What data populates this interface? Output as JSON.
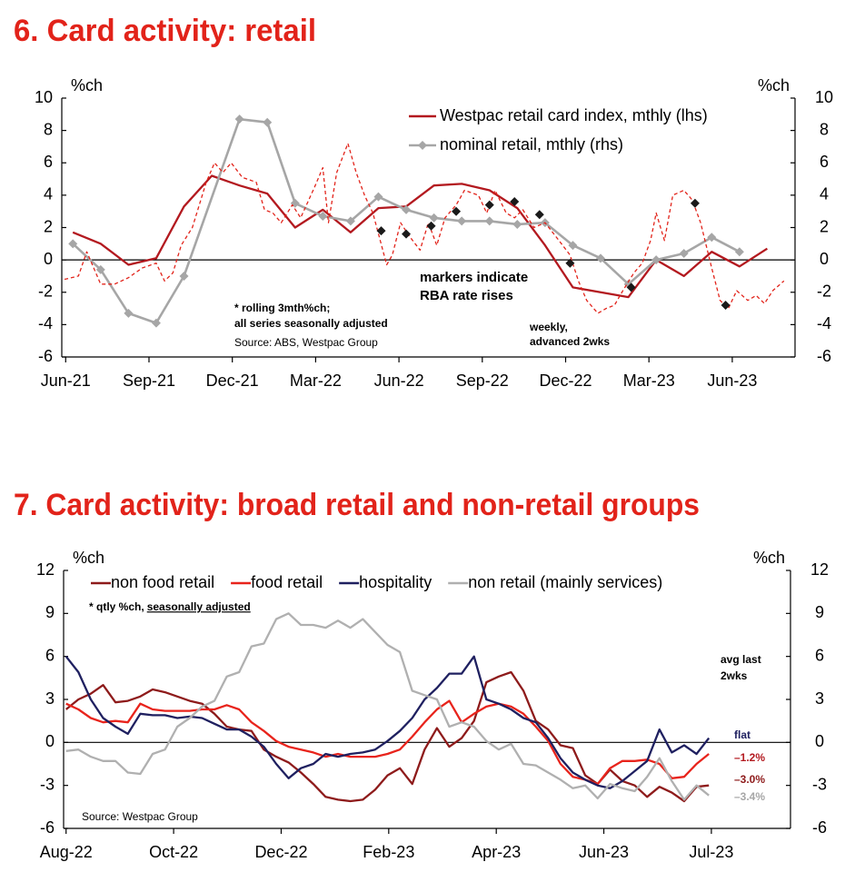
{
  "chart_data": [
    {
      "type": "line",
      "title": "6. Card activity: retail",
      "y_label": "%ch",
      "y2_label": "%ch",
      "xlim": [
        -0.4,
        26.0
      ],
      "xticks": [
        {
          "value": -0.26,
          "label": "Jun-21"
        },
        {
          "value": 2.74,
          "label": "Sep-21"
        },
        {
          "value": 5.74,
          "label": "Dec-21"
        },
        {
          "value": 8.74,
          "label": "Mar-22"
        },
        {
          "value": 11.74,
          "label": "Jun-22"
        },
        {
          "value": 14.74,
          "label": "Sep-22"
        },
        {
          "value": 17.74,
          "label": "Dec-22"
        },
        {
          "value": 20.74,
          "label": "Mar-23"
        },
        {
          "value": 23.74,
          "label": "Jun-23"
        }
      ],
      "ylim": [
        -6,
        10
      ],
      "yticks": [
        -6,
        -4,
        -2,
        0,
        2,
        4,
        6,
        8,
        10
      ],
      "y2lim": [
        -6,
        10
      ],
      "y2ticks": [
        -6,
        -4,
        -2,
        0,
        2,
        4,
        6,
        8,
        10
      ],
      "grid": false,
      "legend": "upper center",
      "series": [
        {
          "name": "Westpac retail card index, mthly (lhs)",
          "color": "#b3191f",
          "x": [
            0,
            1,
            2,
            3,
            4,
            5,
            6,
            7,
            8,
            9,
            10,
            11,
            12,
            13,
            14,
            15,
            16,
            17,
            18,
            19,
            20,
            21,
            22,
            23,
            24,
            25
          ],
          "values": [
            1.7,
            1.0,
            -0.3,
            0.1,
            3.3,
            5.2,
            4.6,
            4.1,
            2.0,
            3.1,
            1.7,
            3.2,
            3.3,
            4.6,
            4.7,
            4.3,
            3.2,
            0.9,
            -1.7,
            -2.0,
            -2.3,
            0,
            -1.0,
            0.5,
            -0.4,
            0.7
          ]
        },
        {
          "name": "nominal retail, mthly (rhs)",
          "color": "#a6a6a6",
          "axis": "y2",
          "marker": "diamond",
          "x": [
            0,
            1,
            2,
            3,
            4,
            6,
            7,
            8,
            9,
            10,
            11,
            12,
            13,
            14,
            15,
            16,
            17,
            18,
            19,
            20,
            21,
            22,
            23,
            24
          ],
          "values": [
            1.0,
            -0.6,
            -3.3,
            -3.9,
            -1.0,
            8.7,
            8.5,
            3.5,
            2.7,
            2.4,
            3.9,
            3.1,
            2.6,
            2.4,
            2.4,
            2.2,
            2.3,
            0.9,
            0.1,
            -1.5,
            0,
            0.4,
            1.4,
            0.5
          ]
        },
        {
          "color": "#e2231a",
          "dash": true,
          "x": [
            -0.3,
            0.2,
            0.5,
            1.0,
            1.5,
            2.0,
            2.5,
            3.0,
            3.3,
            3.6,
            3.9,
            4.3,
            4.8,
            5.1,
            5.4,
            5.7,
            6.1,
            6.6,
            6.9,
            7.2,
            7.5,
            7.9,
            8.2,
            8.7,
            9.0,
            9.2,
            9.5,
            9.9,
            10.2,
            10.5,
            10.8,
            11.3,
            11.5,
            11.8,
            12.1,
            12.5,
            12.8,
            13.1,
            13.4,
            13.8,
            14.1,
            14.6,
            14.9,
            15.2,
            15.6,
            15.9,
            16.2,
            16.6,
            17.0,
            17.5,
            17.9,
            18.2,
            18.5,
            18.9,
            19.2,
            19.5,
            19.8,
            20.2,
            20.5,
            20.8,
            21.0,
            21.3,
            21.6,
            22.0,
            22.3,
            22.6,
            23.0,
            23.3,
            23.6,
            23.9,
            24.3,
            24.6,
            24.9,
            25.2,
            25.6
          ],
          "values": [
            -1.2,
            -1.0,
            0.5,
            -1.5,
            -1.5,
            -1.1,
            -0.5,
            -0.2,
            -1.3,
            -0.8,
            0.9,
            2.0,
            4.8,
            6.0,
            5.4,
            6.0,
            5.1,
            4.8,
            3.1,
            2.9,
            2.3,
            3.4,
            2.6,
            4.5,
            5.7,
            2.3,
            5.4,
            7.2,
            5.4,
            4.0,
            2.9,
            -0.3,
            0.3,
            2.3,
            1.5,
            0.6,
            2.3,
            0.9,
            2.6,
            3.4,
            4.3,
            4.0,
            2.9,
            4.3,
            2.9,
            2.6,
            3.1,
            2.0,
            2.3,
            1.2,
            0.3,
            -1.3,
            -2.5,
            -3.3,
            -3.0,
            -2.8,
            -1.9,
            -0.8,
            -0.2,
            1.2,
            2.9,
            1.2,
            4.0,
            4.3,
            3.7,
            2.3,
            -0.5,
            -2.5,
            -3.0,
            -1.9,
            -2.5,
            -2.2,
            -2.7,
            -1.9,
            -1.3
          ]
        },
        {
          "color": "#1a1a1a",
          "marker": "diamond",
          "line": false,
          "x": [
            11.1,
            12.0,
            12.9,
            13.8,
            15.0,
            15.9,
            16.8,
            17.9,
            20.1,
            22.4,
            23.5
          ],
          "values": [
            1.8,
            1.6,
            2.1,
            3.0,
            3.4,
            3.6,
            2.8,
            -0.2,
            -1.7,
            3.5,
            -2.8
          ]
        }
      ],
      "annotations": [
        "* rolling 3mth%ch;",
        "all series seasonally adjusted",
        "Source: ABS, Westpac Group",
        "markers indicate",
        "RBA rate rises",
        "weekly,",
        "advanced 2wks"
      ]
    },
    {
      "type": "line",
      "title": "7. Card activity: broad retail and non-retail groups",
      "y_label": "%ch",
      "y2_label": "%ch",
      "xlim": [
        -0.2,
        58.6
      ],
      "xticks": [
        {
          "value": 0,
          "label": "Aug-22"
        },
        {
          "value": 8.7,
          "label": "Oct-22"
        },
        {
          "value": 17.4,
          "label": "Dec-22"
        },
        {
          "value": 26.1,
          "label": "Feb-23"
        },
        {
          "value": 34.8,
          "label": "Apr-23"
        },
        {
          "value": 43.5,
          "label": "Jun-23"
        },
        {
          "value": 52.2,
          "label": "Jul-23"
        }
      ],
      "ylim": [
        -6,
        12
      ],
      "yticks": [
        -6,
        -3,
        0,
        3,
        6,
        9,
        12
      ],
      "y2lim": [
        -6,
        12
      ],
      "y2ticks": [
        -6,
        -3,
        0,
        3,
        6,
        9,
        12
      ],
      "grid": false,
      "legend": "top",
      "x": [
        0,
        1,
        2,
        3,
        4,
        5,
        6,
        7,
        8,
        9,
        10,
        11,
        12,
        13,
        14,
        15,
        16,
        17,
        18,
        19,
        20,
        21,
        22,
        23,
        24,
        25,
        26,
        27,
        28,
        29,
        30,
        31,
        32,
        33,
        34,
        35,
        36,
        37,
        38,
        39,
        40,
        41,
        42,
        43,
        44,
        45,
        46,
        47,
        48,
        49,
        50,
        51,
        52
      ],
      "series": [
        {
          "name": "non food retail",
          "color": "#8e1b1b",
          "values": [
            2.3,
            3.0,
            3.4,
            4.0,
            2.8,
            2.9,
            3.2,
            3.7,
            3.5,
            3.2,
            2.9,
            2.7,
            2.0,
            1.1,
            0.9,
            0.8,
            -0.5,
            -1.0,
            -1.4,
            -2.1,
            -2.9,
            -3.8,
            -4.0,
            -4.1,
            -4.0,
            -3.3,
            -2.3,
            -1.8,
            -2.9,
            -0.5,
            1.0,
            -0.3,
            0.3,
            1.5,
            4.2,
            4.6,
            4.9,
            3.6,
            1.5,
            0.9,
            -0.2,
            -0.4,
            -2.3,
            -2.9,
            -1.9,
            -2.7,
            -3.0,
            -3.8,
            -3.1,
            -3.5,
            -4.1,
            -3.1,
            -3.0
          ]
        },
        {
          "name": "food retail",
          "color": "#e8241c",
          "values": [
            2.7,
            2.3,
            1.7,
            1.4,
            1.5,
            1.4,
            2.7,
            2.3,
            2.2,
            2.2,
            2.2,
            2.3,
            2.3,
            2.6,
            2.3,
            1.4,
            0.8,
            0.1,
            -0.3,
            -0.5,
            -0.7,
            -1.0,
            -0.8,
            -1.0,
            -1.0,
            -1.0,
            -0.8,
            -0.5,
            0.4,
            1.4,
            2.3,
            2.9,
            1.4,
            2.0,
            2.5,
            2.7,
            2.5,
            2.0,
            1.1,
            0.1,
            -1.5,
            -2.4,
            -2.6,
            -2.9,
            -1.8,
            -1.3,
            -1.3,
            -1.2,
            -1.5,
            -2.5,
            -2.4,
            -1.5,
            -0.8
          ]
        },
        {
          "name": "hospitality",
          "color": "#1f2060",
          "values": [
            6.0,
            4.9,
            3.0,
            1.7,
            1.1,
            0.6,
            2.0,
            1.9,
            1.9,
            1.7,
            1.8,
            1.7,
            1.3,
            0.9,
            0.9,
            0.4,
            -0.3,
            -1.5,
            -2.5,
            -1.8,
            -1.5,
            -0.8,
            -1.0,
            -0.8,
            -0.7,
            -0.5,
            0.1,
            0.8,
            1.7,
            3.0,
            3.8,
            4.8,
            4.8,
            6.0,
            3.0,
            2.7,
            2.3,
            1.7,
            1.4,
            0.3,
            -1.1,
            -2.1,
            -2.6,
            -3.0,
            -3.2,
            -2.7,
            -2.0,
            -1.3,
            0.9,
            -0.7,
            -0.2,
            -0.8,
            0.3
          ]
        },
        {
          "name": "non retail (mainly services)",
          "color": "#b0b0b0",
          "values": [
            -0.6,
            -0.5,
            -1.0,
            -1.3,
            -1.3,
            -2.1,
            -2.2,
            -0.8,
            -0.5,
            1.1,
            1.7,
            2.5,
            2.9,
            4.6,
            4.9,
            6.7,
            6.9,
            8.6,
            9.0,
            8.2,
            8.2,
            8.0,
            8.5,
            8.0,
            8.6,
            7.7,
            6.8,
            6.3,
            3.6,
            3.3,
            3.0,
            1.1,
            1.4,
            1.1,
            0.1,
            -0.5,
            -0.1,
            -1.5,
            -1.6,
            -2.1,
            -2.6,
            -3.2,
            -3.0,
            -3.9,
            -2.9,
            -3.2,
            -3.4,
            -2.4,
            -1.1,
            -2.7,
            -4.0,
            -3.0,
            -3.7
          ]
        }
      ],
      "annotations": [
        "* qtly %ch, ",
        "seasonally adjusted",
        "Source: Westpac Group",
        "avg last",
        "2wks",
        "flat",
        "–1.2%",
        "–3.0%",
        "–3.4%"
      ]
    }
  ]
}
